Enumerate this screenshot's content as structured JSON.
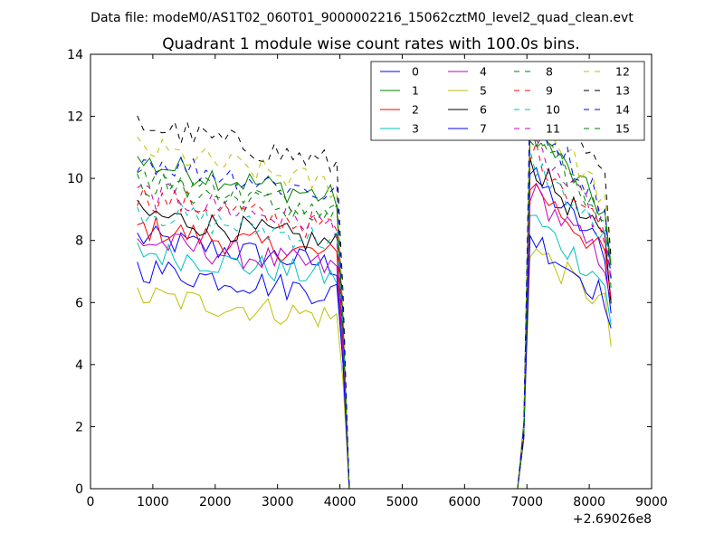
{
  "supertitle": "Data file: modeM0/AS1T02_060T01_9000002216_15062cztM0_level2_quad_clean.evt",
  "chart_data": {
    "type": "line",
    "title": "Quadrant 1 module wise count rates with 100.0s bins.",
    "xlabel": "",
    "ylabel": "",
    "xlim": [
      0,
      9000
    ],
    "ylim": [
      0,
      14
    ],
    "x_offset_label": "+2.69026e8",
    "xticks": [
      0,
      1000,
      2000,
      3000,
      4000,
      5000,
      6000,
      7000,
      8000,
      9000
    ],
    "yticks": [
      0,
      2,
      4,
      6,
      8,
      10,
      12,
      14
    ],
    "grid": false,
    "legend_position": "top-right",
    "legend_columns": 4,
    "series": [
      {
        "name": "0",
        "color": "#0000ff",
        "dash": "solid",
        "seg1_level": 7.3,
        "seg2_level": 8.3
      },
      {
        "name": "1",
        "color": "#008000",
        "dash": "solid",
        "seg1_level": 9.5,
        "seg2_level": 9.6
      },
      {
        "name": "2",
        "color": "#ff0000",
        "dash": "solid",
        "seg1_level": 7.6,
        "seg2_level": 8.1
      },
      {
        "name": "3",
        "color": "#00bfbf",
        "dash": "solid",
        "seg1_level": 6.9,
        "seg2_level": 7.2
      },
      {
        "name": "4",
        "color": "#bf00bf",
        "dash": "solid",
        "seg1_level": 7.2,
        "seg2_level": 7.9
      },
      {
        "name": "5",
        "color": "#bfbf00",
        "dash": "solid",
        "seg1_level": 5.6,
        "seg2_level": 6.4
      },
      {
        "name": "6",
        "color": "#000000",
        "dash": "solid",
        "seg1_level": 8.0,
        "seg2_level": 8.6
      },
      {
        "name": "7",
        "color": "#0000ff",
        "dash": "solid",
        "seg1_level": 6.4,
        "seg2_level": 6.7
      },
      {
        "name": "8",
        "color": "#008000",
        "dash": "dashed",
        "seg1_level": 8.9,
        "seg2_level": 9.4
      },
      {
        "name": "9",
        "color": "#ff0000",
        "dash": "dashed",
        "seg1_level": 8.5,
        "seg2_level": 9.0
      },
      {
        "name": "10",
        "color": "#00bfbf",
        "dash": "dashed",
        "seg1_level": 8.1,
        "seg2_level": 8.7
      },
      {
        "name": "11",
        "color": "#bf00bf",
        "dash": "dashed",
        "seg1_level": 8.6,
        "seg2_level": 9.1
      },
      {
        "name": "12",
        "color": "#bfbf00",
        "dash": "dashed",
        "seg1_level": 9.9,
        "seg2_level": 10.1
      },
      {
        "name": "13",
        "color": "#000000",
        "dash": "dashed",
        "seg1_level": 10.6,
        "seg2_level": 10.8
      },
      {
        "name": "14",
        "color": "#0000ff",
        "dash": "dashed",
        "seg1_level": 9.6,
        "seg2_level": 9.9
      },
      {
        "name": "15",
        "color": "#008000",
        "dash": "dashed",
        "seg1_level": 9.1,
        "seg2_level": 9.5
      }
    ],
    "segments": {
      "seg1_x": [
        750,
        850,
        950,
        1050,
        1150,
        1250,
        1350,
        1450,
        1550,
        1650,
        1750,
        1850,
        1950,
        2050,
        2150,
        2250,
        2350,
        2450,
        2550,
        2650,
        2750,
        2850,
        2950,
        3050,
        3150,
        3250,
        3350,
        3450,
        3550,
        3650,
        3750,
        3850,
        3950
      ],
      "drop_x": [
        4050,
        4150
      ],
      "zero_x": [
        4150,
        6850
      ],
      "rise_x": [
        6850,
        6950,
        7050
      ],
      "seg2_x": [
        7050,
        7150,
        7250,
        7350,
        7450,
        7550,
        7650,
        7750,
        7850,
        7950,
        8050,
        8150,
        8250,
        8350
      ]
    }
  }
}
